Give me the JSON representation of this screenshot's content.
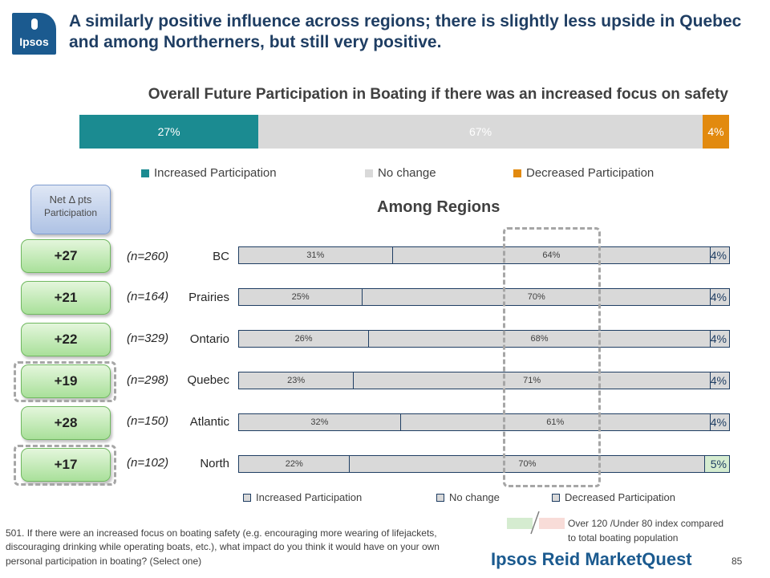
{
  "logo": {
    "text": "Ipsos"
  },
  "headline": "A similarly positive influence across regions; there is slightly less upside in Quebec and among Northerners, but still very positive.",
  "overall": {
    "title": "Overall Future Participation in Boating if there was an increased focus on safety",
    "segments": [
      {
        "name": "Increased Participation",
        "value": 27,
        "label": "27%",
        "color": "#1b8b91",
        "text_color": "#ffffff"
      },
      {
        "name": "No change",
        "value": 67,
        "label": "67%",
        "color": "#d9d9d9",
        "text_color": "#ffffff"
      },
      {
        "name": "Decreased Participation",
        "value": 4,
        "label": "4%",
        "color": "#e28a0f",
        "text_color": "#ffffff"
      }
    ],
    "legend": [
      "Increased Participation",
      "No change",
      "Decreased Participation"
    ]
  },
  "net_header": {
    "line1": "Net Δ pts",
    "line2": "Participation"
  },
  "net_values": [
    "+27",
    "+21",
    "+22",
    "+19",
    "+28",
    "+17"
  ],
  "chart_data": {
    "type": "bar",
    "title": "Among Regions",
    "orientation": "horizontal-stacked",
    "categories": [
      "BC",
      "Prairies",
      "Ontario",
      "Quebec",
      "Atlantic",
      "North"
    ],
    "sample_sizes": [
      "(n=260)",
      "(n=164)",
      "(n=329)",
      "(n=298)",
      "(n=150)",
      "(n=102)"
    ],
    "series": [
      {
        "name": "Increased Participation",
        "values": [
          31,
          25,
          26,
          23,
          32,
          22
        ],
        "labels": [
          "31%",
          "25%",
          "26%",
          "23%",
          "32%",
          "22%"
        ]
      },
      {
        "name": "No change",
        "values": [
          64,
          70,
          68,
          71,
          61,
          70
        ],
        "labels": [
          "64%",
          "70%",
          "68%",
          "71%",
          "61%",
          "70%"
        ]
      },
      {
        "name": "Decreased Participation",
        "values": [
          4,
          4,
          4,
          4,
          4,
          5
        ],
        "labels": [
          "4%",
          "4%",
          "4%",
          "4%",
          "4%",
          "5%"
        ]
      }
    ],
    "highlight": {
      "North": {
        "series": "Decreased Participation",
        "color": "#d5ecd0"
      }
    },
    "legend": [
      "Increased Participation",
      "No change",
      "Decreased Participation"
    ],
    "legend_position": "bottom"
  },
  "footnote": "501. If there were an increased focus on boating safety (e.g. encouraging more wearing of lifejackets, discouraging drinking while operating boats, etc.), what impact do you think it would have on your own personal participation in boating? (Select one)",
  "index_key": {
    "line1": "Over 120 /Under 80 index compared",
    "line2": "to total boating population"
  },
  "brand": "Ipsos Reid MarketQuest",
  "page_number": "85"
}
